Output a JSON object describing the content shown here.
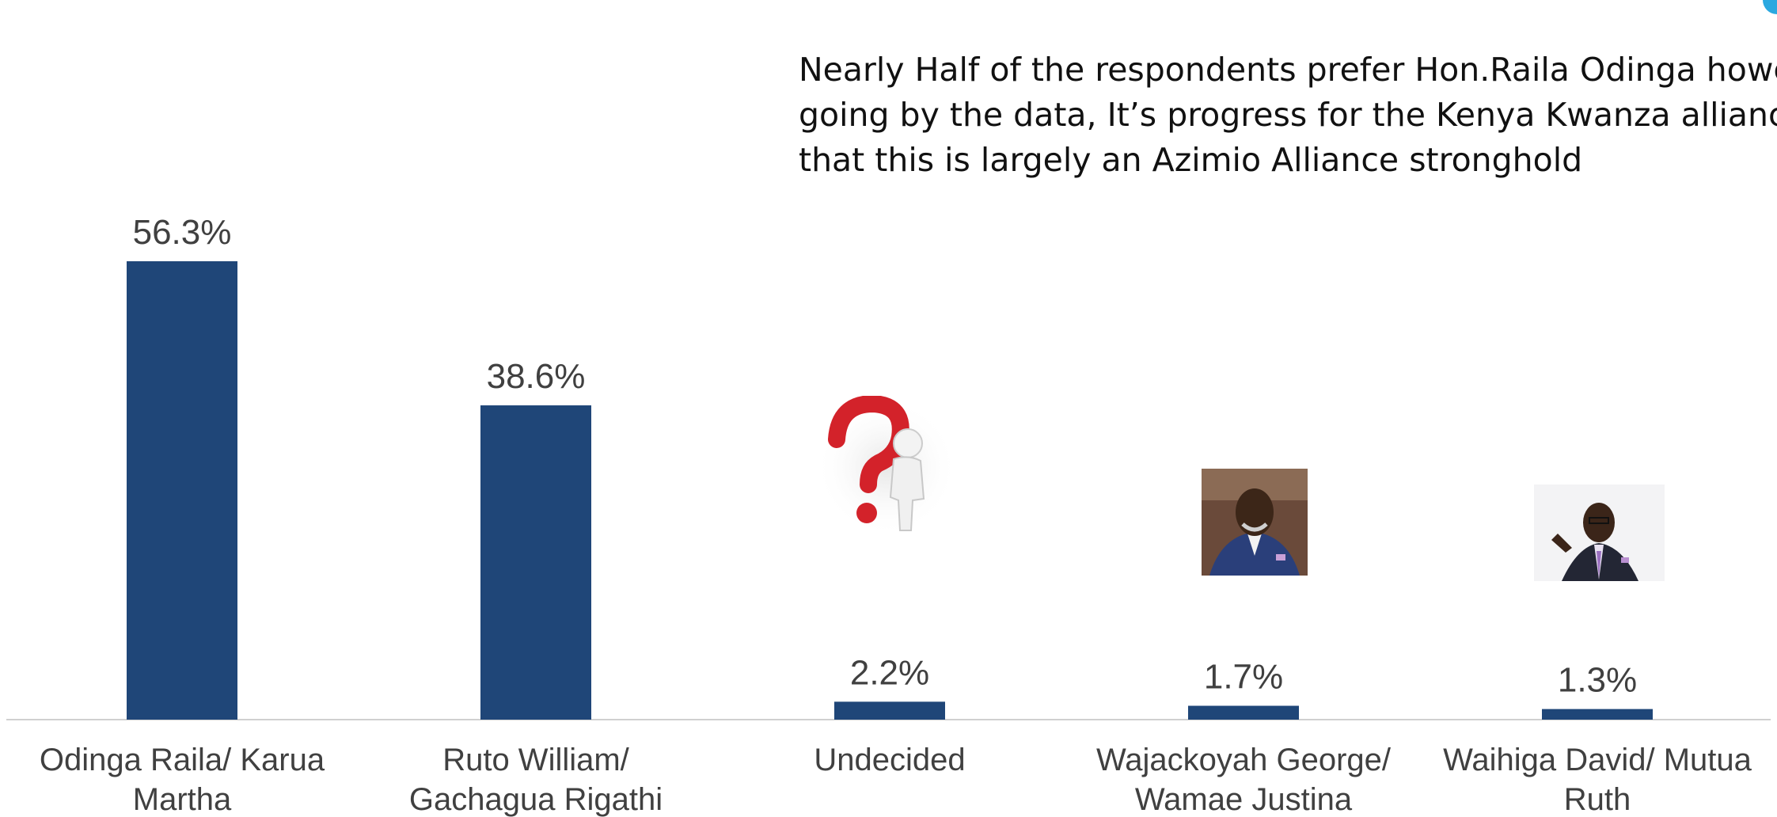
{
  "headline": {
    "line1": "Nearly Half of the respondents prefer Hon.Raila Odinga however",
    "line2": "going by the data, It’s  progress for the Kenya Kwanza alliance given",
    "line3": "that this is largely an Azimio Alliance stronghold"
  },
  "chart_data": {
    "type": "bar",
    "categories": [
      [
        "Odinga Raila/ Karua",
        "Martha"
      ],
      [
        "Ruto William/",
        "Gachagua Rigathi"
      ],
      [
        "Undecided"
      ],
      [
        "Wajackoyah George/",
        "Wamae Justina"
      ],
      [
        "Waihiga David/ Mutua",
        "Ruth"
      ]
    ],
    "values": [
      56.3,
      38.6,
      2.2,
      1.7,
      1.3
    ],
    "data_labels": [
      "56.3%",
      "38.6%",
      "2.2%",
      "1.7%",
      "1.3%"
    ],
    "bar_color": "#1f4678",
    "axis_color": "#d0d0d0",
    "label_color": "#404040",
    "ylim": [
      0,
      56.3
    ],
    "grid": false,
    "legend": "none"
  },
  "images": [
    {
      "name": "odinga-photo",
      "bar": 0
    },
    {
      "name": "ruto-photo",
      "bar": 1
    },
    {
      "name": "question-mark-figure",
      "bar": 2
    },
    {
      "name": "wajackoyah-photo",
      "bar": 3
    },
    {
      "name": "waihiga-photo",
      "bar": 4
    }
  ]
}
